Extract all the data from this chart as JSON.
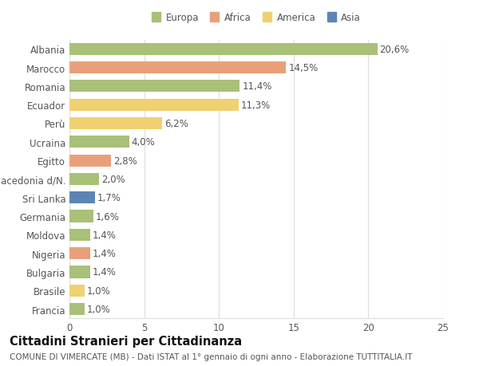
{
  "categories": [
    "Albania",
    "Marocco",
    "Romania",
    "Ecuador",
    "Perù",
    "Ucraina",
    "Egitto",
    "Macedonia d/N.",
    "Sri Lanka",
    "Germania",
    "Moldova",
    "Nigeria",
    "Bulgaria",
    "Brasile",
    "Francia"
  ],
  "values": [
    20.6,
    14.5,
    11.4,
    11.3,
    6.2,
    4.0,
    2.8,
    2.0,
    1.7,
    1.6,
    1.4,
    1.4,
    1.4,
    1.0,
    1.0
  ],
  "labels": [
    "20,6%",
    "14,5%",
    "11,4%",
    "11,3%",
    "6,2%",
    "4,0%",
    "2,8%",
    "2,0%",
    "1,7%",
    "1,6%",
    "1,4%",
    "1,4%",
    "1,4%",
    "1,0%",
    "1,0%"
  ],
  "colors": [
    "#a8c077",
    "#e8a07a",
    "#a8c077",
    "#f0d070",
    "#f0d070",
    "#a8c077",
    "#e8a07a",
    "#a8c077",
    "#5b85b5",
    "#a8c077",
    "#a8c077",
    "#e8a07a",
    "#a8c077",
    "#f0d070",
    "#a8c077"
  ],
  "legend_labels": [
    "Europa",
    "Africa",
    "America",
    "Asia"
  ],
  "legend_colors": [
    "#a8c077",
    "#e8a07a",
    "#f0d070",
    "#5b85b5"
  ],
  "xlim": [
    0,
    25
  ],
  "xticks": [
    0,
    5,
    10,
    15,
    20,
    25
  ],
  "title": "Cittadini Stranieri per Cittadinanza",
  "subtitle": "COMUNE DI VIMERCATE (MB) - Dati ISTAT al 1° gennaio di ogni anno - Elaborazione TUTTITALIA.IT",
  "bar_height": 0.65,
  "bg_color": "#ffffff",
  "grid_color": "#dddddd",
  "text_color": "#555555",
  "label_fontsize": 8.5,
  "tick_fontsize": 8.5,
  "title_fontsize": 10.5,
  "subtitle_fontsize": 7.5
}
